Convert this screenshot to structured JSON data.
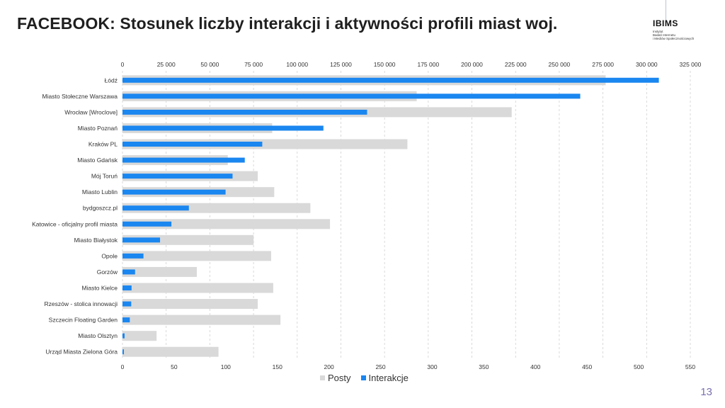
{
  "title": "FACEBOOK: Stosunek liczby interakcji i aktywności profili miast woj.",
  "logo": {
    "name": "IBIMS",
    "subtitle": [
      "Instytut",
      "Badań Internetu",
      "i Mediów Społecznościowych"
    ]
  },
  "page_number": "13",
  "colors": {
    "posty": "#d9d9d9",
    "interakcje": "#1a86f0",
    "grid": "#d0d0d0"
  },
  "chart_data": {
    "type": "bar",
    "orientation": "horizontal",
    "title": "",
    "categories": [
      "Łódź",
      "Miasto Stołeczne Warszawa",
      "Wrocław [Wroclove]",
      "Miasto Poznań",
      "Kraków PL",
      "Miasto Gdańsk",
      "Mój Toruń",
      "Miasto Lublin",
      "bydgoszcz.pl",
      "Katowice - oficjalny profil miasta",
      "Miasto Białystok",
      "Opole",
      "Gorzów",
      "Miasto Kielce",
      "Rzeszów - stolica innowacji",
      "Szczecin Floating Garden",
      "Miasto Olsztyn",
      "Urząd Miasta Zielona Góra"
    ],
    "series": [
      {
        "name": "Posty",
        "axis": "bottom",
        "values": [
          468,
          285,
          377,
          145,
          276,
          102,
          131,
          147,
          182,
          201,
          127,
          144,
          72,
          146,
          131,
          153,
          33,
          93
        ]
      },
      {
        "name": "Interakcje",
        "axis": "top",
        "values": [
          307000,
          262000,
          140000,
          115000,
          80000,
          70000,
          63000,
          59000,
          38000,
          28000,
          21500,
          12000,
          7200,
          5200,
          5000,
          4200,
          1200,
          800
        ]
      }
    ],
    "top_axis": {
      "range": [
        0,
        325000
      ],
      "ticks": [
        "0",
        "25 000",
        "50 000",
        "75 000",
        "100 000",
        "125 000",
        "150 000",
        "175 000",
        "200 000",
        "225 000",
        "250 000",
        "275 000",
        "300 000",
        "325 000"
      ]
    },
    "bottom_axis": {
      "range": [
        0,
        550
      ],
      "ticks": [
        "0",
        "50",
        "100",
        "150",
        "200",
        "250",
        "300",
        "350",
        "400",
        "450",
        "500",
        "550"
      ]
    },
    "grid": "vertical-dashed",
    "legend": "bottom"
  }
}
